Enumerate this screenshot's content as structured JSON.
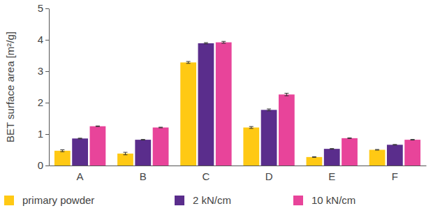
{
  "chart_data": {
    "type": "bar",
    "y_label": "BET surface area [m²/g]",
    "categories": [
      "A",
      "B",
      "C",
      "D",
      "E",
      "F"
    ],
    "series": [
      {
        "name": "primary powder",
        "color": "#ffc914",
        "values": [
          0.47,
          0.38,
          3.28,
          1.21,
          0.27,
          0.5
        ],
        "errors": [
          0.03,
          0.04,
          0.03,
          0.03,
          0.01,
          0.01
        ]
      },
      {
        "name": "2 kN/cm",
        "color": "#5a2d8c",
        "values": [
          0.86,
          0.82,
          3.89,
          1.77,
          0.53,
          0.66
        ],
        "errors": [
          0.01,
          0.01,
          0.02,
          0.03,
          0.01,
          0.01
        ]
      },
      {
        "name": "10 kN/cm",
        "color": "#e8449a",
        "values": [
          1.25,
          1.21,
          3.92,
          2.26,
          0.87,
          0.82
        ],
        "errors": [
          0.01,
          0.01,
          0.03,
          0.04,
          0.01,
          0.01
        ]
      }
    ],
    "ylim": [
      0,
      5
    ],
    "yticks": [
      0,
      1,
      2,
      3,
      4,
      5
    ],
    "grid": false,
    "legend": "bottom"
  }
}
